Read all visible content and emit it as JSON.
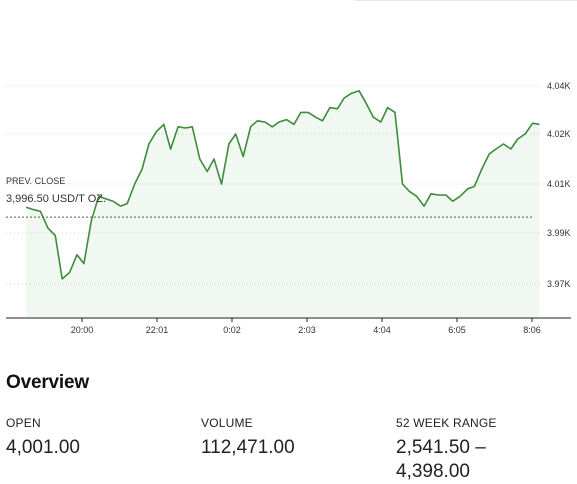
{
  "chart_data": {
    "type": "area",
    "x_ticks": [
      "20:00",
      "22:01",
      "0:02",
      "2:03",
      "4:04",
      "6:05",
      "8:06"
    ],
    "y_ticks": [
      "4.04K",
      "4.02K",
      "4.01K",
      "3.99K",
      "3.97K"
    ],
    "ylim": [
      3960,
      4050
    ],
    "prev_close": 3996.5,
    "prev_close_label": "PREV. CLOSE",
    "prev_close_value_label": "3,996.50 USD/T OZ.",
    "grid": true,
    "series": [
      {
        "color": "#3d8c3a",
        "x": [
          "18:30",
          "18:42",
          "18:53",
          "19:05",
          "19:17",
          "19:28",
          "19:40",
          "19:52",
          "20:03",
          "20:15",
          "20:27",
          "20:38",
          "20:50",
          "21:02",
          "21:13",
          "21:25",
          "21:37",
          "21:48",
          "22:00",
          "22:12",
          "22:23",
          "22:35",
          "22:47",
          "22:58",
          "23:10",
          "23:22",
          "23:33",
          "23:45",
          "23:57",
          "0:08",
          "0:20",
          "0:32",
          "0:43",
          "0:55",
          "1:07",
          "1:18",
          "1:30",
          "1:42",
          "1:53",
          "2:05",
          "2:17",
          "2:28",
          "2:40",
          "2:52",
          "3:03",
          "3:15",
          "3:27",
          "3:38",
          "3:50",
          "4:02",
          "4:13",
          "4:25",
          "4:37",
          "4:48",
          "5:00",
          "5:12",
          "5:23",
          "5:35",
          "5:47",
          "5:58",
          "6:10",
          "6:22",
          "6:33",
          "6:45",
          "6:57",
          "7:08",
          "7:20",
          "7:32",
          "7:43",
          "7:55",
          "8:07",
          "8:18"
        ],
        "values": [
          4000.5,
          3999.5,
          3998.8,
          3992.0,
          3989.0,
          3972.0,
          3974.5,
          3981.5,
          3978.0,
          3995.0,
          4005.0,
          4004.0,
          4003.0,
          4001.0,
          4002.0,
          4010.0,
          4013.0,
          4018.0,
          4021.0,
          4024.0,
          4017.0,
          4023.0,
          4022.5,
          4023.0,
          4015.0,
          4012.5,
          4015.0,
          4010.0,
          4018.0,
          4020.0,
          4015.5,
          4023.0,
          4025.5,
          4025.0,
          4023.0,
          4025.0,
          4026.0,
          4024.0,
          4029.0,
          4029.0,
          4027.0,
          4025.5,
          4031.0,
          4030.5,
          4035.0,
          4037.0,
          4038.0,
          4033.0,
          4027.0,
          4025.0,
          4031.0,
          4029.0,
          4010.0,
          4007.0,
          4005.0,
          4001.0,
          4006.0,
          4005.5,
          4005.5,
          4003.0,
          4005.0,
          4008.0,
          4009.0,
          4013.0,
          4016.0,
          4017.0,
          4018.0,
          4017.0,
          4019.0,
          4020.0,
          4024.5,
          4024.0
        ]
      }
    ]
  },
  "overview": {
    "title": "Overview",
    "stats": [
      {
        "label": "OPEN",
        "value": "4,001.00"
      },
      {
        "label": "VOLUME",
        "value": "112,471.00"
      },
      {
        "label": "52 WEEK RANGE",
        "value": "2,541.50 – 4,398.00"
      }
    ]
  }
}
